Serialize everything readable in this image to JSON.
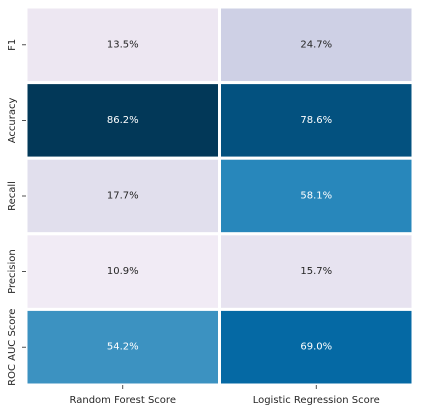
{
  "chart_data": {
    "type": "heatmap",
    "title": "",
    "xlabel": "",
    "ylabel": "",
    "x_categories": [
      "Random Forest Score",
      "Logistic Regression Score"
    ],
    "y_categories": [
      "F1",
      "Accuracy",
      "Recall",
      "Precision",
      "ROC AUC Score"
    ],
    "values": [
      [
        0.135,
        0.247
      ],
      [
        0.862,
        0.786
      ],
      [
        0.177,
        0.581
      ],
      [
        0.109,
        0.157
      ],
      [
        0.542,
        0.69
      ]
    ],
    "labels": [
      [
        "13.5%",
        "24.7%"
      ],
      [
        "86.2%",
        "78.6%"
      ],
      [
        "17.7%",
        "58.1%"
      ],
      [
        "10.9%",
        "15.7%"
      ],
      [
        "54.2%",
        "69.0%"
      ]
    ],
    "colormap": "PuBu",
    "colorbar": false,
    "grid_line_color": "#ffffff"
  }
}
